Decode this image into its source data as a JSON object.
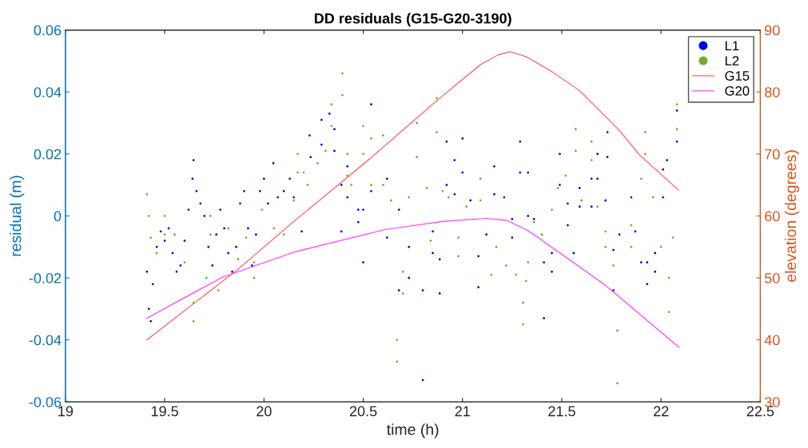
{
  "chart_data": {
    "type": "scatter",
    "title": "DD residuals (G15-G20-3190)",
    "xlabel": "time (h)",
    "ylabel": "residual (m)",
    "y2label": "elevation (degrees)",
    "xlim": [
      19,
      22.5
    ],
    "xticks": [
      19,
      19.5,
      20,
      20.5,
      21,
      21.5,
      22,
      22.5
    ],
    "ylim": [
      -0.06,
      0.06
    ],
    "yticks": [
      -0.06,
      -0.04,
      -0.02,
      0,
      0.02,
      0.04,
      0.06
    ],
    "y2lim": [
      30,
      90
    ],
    "y2ticks": [
      30,
      40,
      50,
      60,
      70,
      80,
      90
    ],
    "grid": false,
    "legend": "top right",
    "marker": "circle",
    "series": [
      {
        "name": "L1",
        "color": "#0000e6",
        "x": [
          19.41,
          19.42,
          19.43,
          19.44,
          19.46,
          19.48,
          19.5,
          19.52,
          19.54,
          19.56,
          19.58,
          19.6,
          19.62,
          19.64,
          19.645,
          19.66,
          19.68,
          19.7,
          19.72,
          19.74,
          19.76,
          19.78,
          19.8,
          19.82,
          19.84,
          19.86,
          19.88,
          19.9,
          19.92,
          19.94,
          19.96,
          19.98,
          20.0,
          20.02,
          20.047,
          20.07,
          20.1,
          20.13,
          20.15,
          20.19,
          20.23,
          20.235,
          20.29,
          20.29,
          20.33,
          20.355,
          20.355,
          20.39,
          20.39,
          20.42,
          20.42,
          20.475,
          20.475,
          20.5,
          20.5,
          20.54,
          20.54,
          20.62,
          20.62,
          20.68,
          20.68,
          20.73,
          20.73,
          20.8,
          20.8,
          20.85,
          20.85,
          20.885,
          20.885,
          20.92,
          20.92,
          20.96,
          20.96,
          21.0,
          21.0,
          21.04,
          21.08,
          21.08,
          21.12,
          21.16,
          21.16,
          21.21,
          21.25,
          21.25,
          21.29,
          21.29,
          21.33,
          21.33,
          21.36,
          21.41,
          21.41,
          21.45,
          21.45,
          21.49,
          21.49,
          21.53,
          21.53,
          21.56,
          21.59,
          21.59,
          21.65,
          21.65,
          21.68,
          21.68,
          21.72,
          21.73,
          21.73,
          21.76,
          21.76,
          21.79,
          21.85,
          21.87,
          21.9,
          21.93,
          21.93,
          21.97,
          21.97,
          22.01,
          22.01,
          22.03,
          22.08,
          22.08
        ],
        "values": [
          -0.018,
          -0.03,
          -0.034,
          -0.022,
          -0.01,
          -0.005,
          -0.008,
          -0.004,
          -0.012,
          -0.018,
          -0.016,
          -0.008,
          0.002,
          0.012,
          0.018,
          0.008,
          0.004,
          0.0,
          -0.01,
          -0.016,
          -0.006,
          0.002,
          -0.004,
          -0.012,
          -0.018,
          -0.01,
          0.004,
          0.008,
          -0.004,
          -0.016,
          -0.006,
          0.008,
          0.012,
          0.004,
          0.017,
          0.006,
          0.008,
          0.012,
          0.006,
          -0.005,
          0.026,
          0.019,
          0.031,
          0.023,
          0.033,
          0.028,
          0.021,
          0.01,
          -0.005,
          0.016,
          0.006,
          0.002,
          -0.002,
          0.002,
          -0.015,
          0.036,
          0.008,
          0.012,
          -0.007,
          0.002,
          -0.024,
          -0.01,
          -0.02,
          -0.024,
          -0.053,
          -0.005,
          -0.012,
          -0.014,
          -0.025,
          0.024,
          0.01,
          0.018,
          0.007,
          0.025,
          0.014,
          0.005,
          -0.013,
          -0.023,
          -0.006,
          0.016,
          0.007,
          0.006,
          -0.001,
          -0.007,
          0.024,
          0.014,
          0.014,
          0.0,
          -0.001,
          -0.015,
          -0.033,
          -0.012,
          -0.018,
          0.02,
          0.01,
          0.004,
          -0.003,
          -0.012,
          0.009,
          0.003,
          0.012,
          0.003,
          0.02,
          0.012,
          0.005,
          0.027,
          0.019,
          -0.011,
          -0.024,
          -0.006,
          0.006,
          -0.005,
          -0.015,
          -0.015,
          -0.022,
          -0.012,
          -0.018,
          0.015,
          0.006,
          0.018,
          0.034,
          0.024
        ]
      },
      {
        "name": "L2",
        "color": "#77ac30",
        "x": [
          19.41,
          19.42,
          19.43,
          19.46,
          19.5,
          19.5,
          19.55,
          19.6,
          19.645,
          19.645,
          19.71,
          19.73,
          19.73,
          19.77,
          19.82,
          19.87,
          19.91,
          19.95,
          19.95,
          19.99,
          20.05,
          20.1,
          20.15,
          20.17,
          20.17,
          20.2,
          20.22,
          20.27,
          20.31,
          20.34,
          20.34,
          20.395,
          20.395,
          20.42,
          20.42,
          20.44,
          20.5,
          20.5,
          20.54,
          20.54,
          20.6,
          20.6,
          20.64,
          20.67,
          20.67,
          20.7,
          20.7,
          20.73,
          20.77,
          20.77,
          20.82,
          20.84,
          20.87,
          20.87,
          20.9,
          20.93,
          20.98,
          20.98,
          21.02,
          21.09,
          21.09,
          21.145,
          21.17,
          21.22,
          21.27,
          21.305,
          21.305,
          21.32,
          21.33,
          21.36,
          21.4,
          21.45,
          21.48,
          21.52,
          21.57,
          21.57,
          21.6,
          21.65,
          21.65,
          21.68,
          21.72,
          21.72,
          21.76,
          21.78,
          21.78,
          21.85,
          21.85,
          21.9,
          21.92,
          21.92,
          21.96,
          22.0,
          22.04,
          22.04,
          22.06,
          22.08,
          22.08
        ],
        "values": [
          0.007,
          0.0,
          -0.007,
          -0.012,
          0.0,
          -0.006,
          -0.006,
          -0.015,
          -0.028,
          -0.034,
          -0.02,
          0.0,
          -0.006,
          -0.024,
          -0.004,
          -0.014,
          -0.007,
          -0.015,
          -0.02,
          0.002,
          -0.004,
          -0.006,
          0.005,
          0.02,
          0.014,
          0.014,
          0.01,
          0.017,
          0.021,
          0.036,
          0.029,
          0.046,
          0.039,
          0.02,
          0.013,
          0.01,
          0.029,
          0.02,
          0.025,
          0.01,
          0.026,
          0.01,
          0.005,
          -0.04,
          -0.047,
          -0.018,
          -0.025,
          0.006,
          0.03,
          0.019,
          0.009,
          -0.008,
          0.038,
          0.027,
          0.008,
          0.006,
          -0.007,
          -0.013,
          0.003,
          0.012,
          0.005,
          -0.019,
          -0.01,
          -0.016,
          -0.019,
          -0.028,
          -0.035,
          -0.021,
          -0.015,
          -0.002,
          -0.006,
          0.002,
          0.009,
          0.013,
          0.028,
          0.021,
          0.005,
          0.024,
          0.018,
          0.003,
          -0.005,
          -0.01,
          -0.016,
          -0.037,
          -0.054,
          -0.003,
          -0.01,
          0.012,
          0.027,
          0.02,
          0.006,
          -0.01,
          -0.02,
          -0.031,
          -0.007,
          0.036,
          0.028
        ]
      },
      {
        "name": "G15",
        "type": "line",
        "axis": "y2",
        "color": "#ff4d4d",
        "marker": "none",
        "x": [
          19.41,
          19.87,
          20.15,
          20.54,
          20.87,
          21.09,
          21.18,
          21.24,
          21.32,
          21.45,
          21.59,
          21.79,
          21.89,
          22.09
        ],
        "values": [
          40,
          51.4,
          59.1,
          69.4,
          78.6,
          84.4,
          86.0,
          86.5,
          85.7,
          83.3,
          80.2,
          73.8,
          69.9,
          64.1
        ]
      },
      {
        "name": "G20",
        "type": "line",
        "axis": "y2",
        "color": "#ff33ff",
        "marker": "none",
        "x": [
          19.41,
          19.79,
          20.155,
          20.61,
          20.9,
          21.12,
          21.22,
          21.32,
          21.36,
          21.72,
          22.09
        ],
        "values": [
          43.5,
          50.1,
          54.2,
          57.8,
          59.1,
          59.6,
          59.3,
          57.8,
          57.0,
          48.8,
          38.8
        ]
      }
    ]
  }
}
